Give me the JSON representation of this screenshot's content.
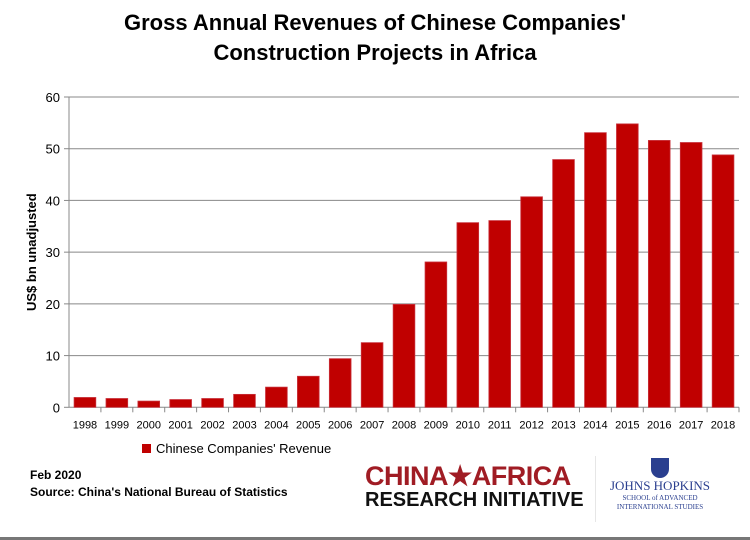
{
  "chart_data": {
    "type": "bar",
    "title": "Gross Annual Revenues of Chinese Companies' Construction Projects in Africa",
    "title_lines": [
      "Gross Annual Revenues of Chinese Companies'",
      "Construction Projects in Africa"
    ],
    "ylabel": "US$ bn unadjusted",
    "xlabel": "",
    "ylim": [
      0,
      60
    ],
    "yticks": [
      0,
      10,
      20,
      30,
      40,
      50,
      60
    ],
    "grid": true,
    "legend": "bottom-left",
    "color": "#c00000",
    "categories": [
      "1998",
      "1999",
      "2000",
      "2001",
      "2002",
      "2003",
      "2004",
      "2005",
      "2006",
      "2007",
      "2008",
      "2009",
      "2010",
      "2011",
      "2012",
      "2013",
      "2014",
      "2015",
      "2016",
      "2017",
      "2018"
    ],
    "series": [
      {
        "name": "Chinese Companies' Revenue",
        "values": [
          1.9,
          1.7,
          1.2,
          1.5,
          1.7,
          2.5,
          3.9,
          6.0,
          9.4,
          12.5,
          19.9,
          28.1,
          35.7,
          36.1,
          40.7,
          47.9,
          53.1,
          54.8,
          51.6,
          51.2,
          48.8
        ]
      }
    ]
  },
  "footer": {
    "date": "Feb 2020",
    "source": "Source: China's National Bureau of Statistics"
  },
  "logos": {
    "china_africa_line1": "CHINA★AFRICA",
    "china_africa_line2": "RESEARCH INITIATIVE",
    "jh_shield": "SAIS",
    "jh_name": "JOHNS HOPKINS",
    "jh_sub1": "SCHOOL of ADVANCED",
    "jh_sub2": "INTERNATIONAL STUDIES"
  }
}
